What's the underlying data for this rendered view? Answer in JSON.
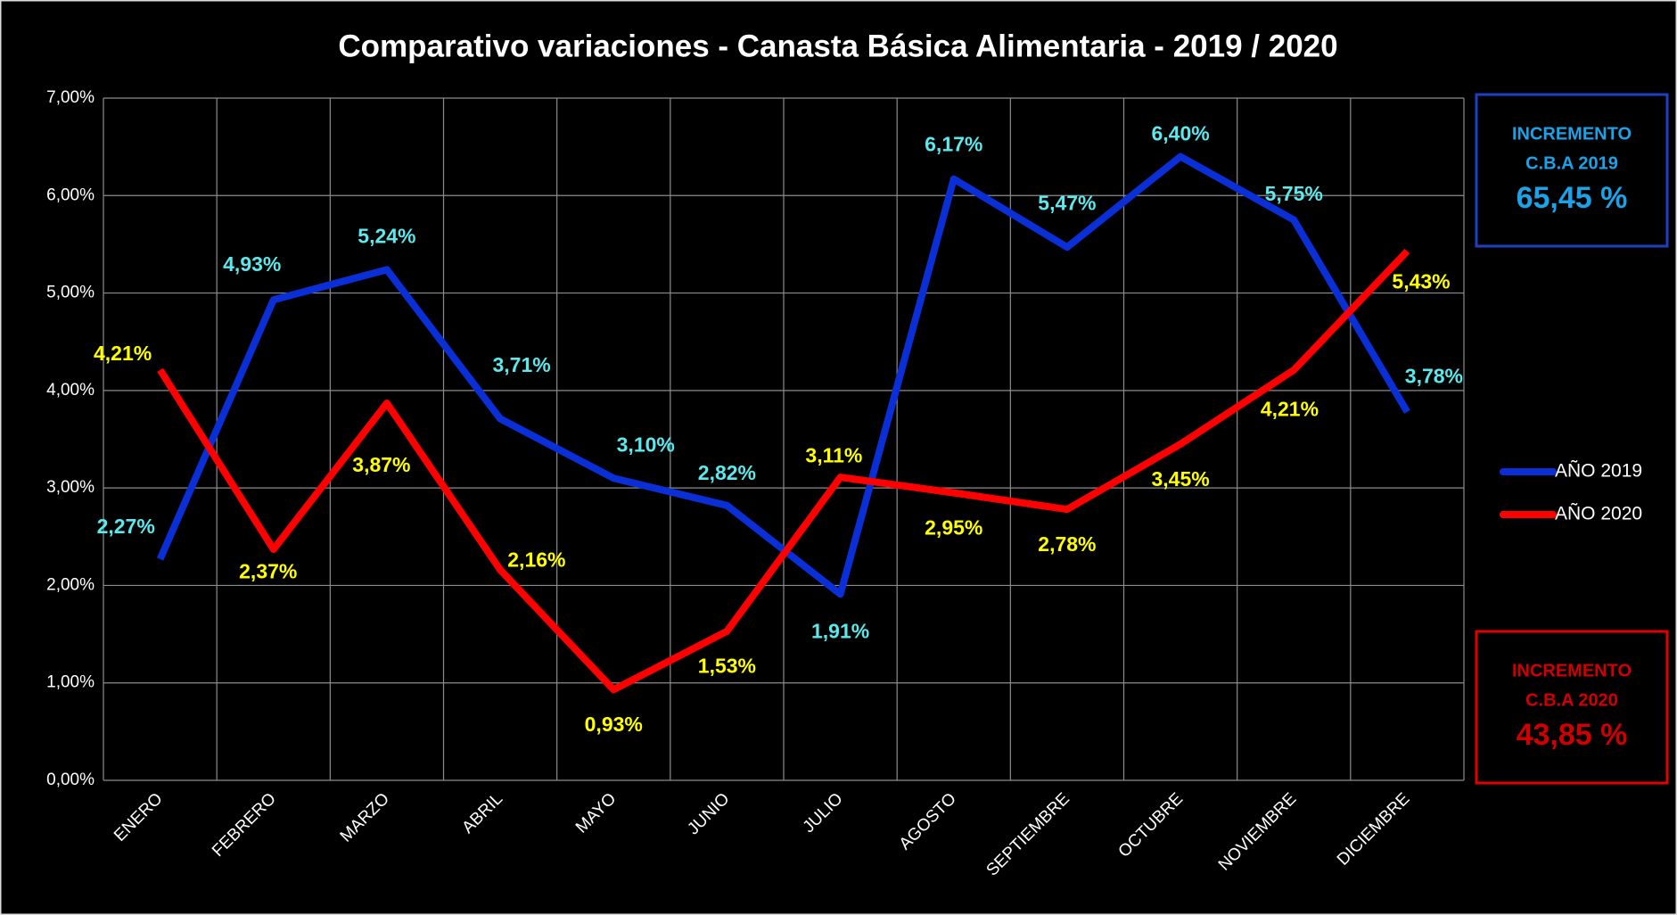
{
  "chart_data": {
    "type": "line",
    "title": "Comparativo variaciones  - Canasta Básica Alimentaria - 2019 / 2020",
    "categories": [
      "ENERO",
      "FEBRERO",
      "MARZO",
      "ABRIL",
      "MAYO",
      "JUNIO",
      "JULIO",
      "AGOSTO",
      "SEPTIEMBRE",
      "OCTUBRE",
      "NOVIEMBRE",
      "DICIEMBRE"
    ],
    "series": [
      {
        "name": "AÑO 2019",
        "color": "#0a2fd6",
        "label_color": "#5ce8ec",
        "values": [
          2.27,
          4.93,
          5.24,
          3.71,
          3.1,
          2.82,
          1.91,
          6.17,
          5.47,
          6.4,
          5.75,
          3.78
        ],
        "value_labels": [
          "2,27%",
          "4,93%",
          "5,24%",
          "3,71%",
          "3,10%",
          "2,82%",
          "1,91%",
          "6,17%",
          "5,47%",
          "6,40%",
          "5,75%",
          "3,78%"
        ]
      },
      {
        "name": "AÑO 2020",
        "color": "#ff0000",
        "label_color": "#ffff00",
        "values": [
          4.21,
          2.37,
          3.87,
          2.16,
          0.93,
          1.53,
          3.11,
          2.95,
          2.78,
          3.45,
          4.21,
          5.43
        ],
        "value_labels": [
          "4,21%",
          "2,37%",
          "3,87%",
          "2,16%",
          "0,93%",
          "1,53%",
          "3,11%",
          "2,95%",
          "2,78%",
          "3,45%",
          "4,21%",
          "5,43%"
        ]
      }
    ],
    "ylim": [
      0,
      7
    ],
    "yticks": [
      {
        "value": 0,
        "label": "0,00%"
      },
      {
        "value": 1,
        "label": "1,00%"
      },
      {
        "value": 2,
        "label": "2,00%"
      },
      {
        "value": 3,
        "label": "3,00%"
      },
      {
        "value": 4,
        "label": "4,00%"
      },
      {
        "value": 5,
        "label": "5,00%"
      },
      {
        "value": 6,
        "label": "6,00%"
      },
      {
        "value": 7,
        "label": "7,00%"
      }
    ],
    "grid": true,
    "legend": "right",
    "annotations": [
      {
        "line1": "INCREMENTO",
        "line2": "C.B.A 2019",
        "text": "65,45 %",
        "color": "#1aa3e8",
        "border": "#1f3fbf"
      },
      {
        "line1": "INCREMENTO",
        "line2": "C.B.A 2020",
        "text": "43,85 %",
        "color": "#d00000",
        "border": "#e00000"
      }
    ]
  }
}
